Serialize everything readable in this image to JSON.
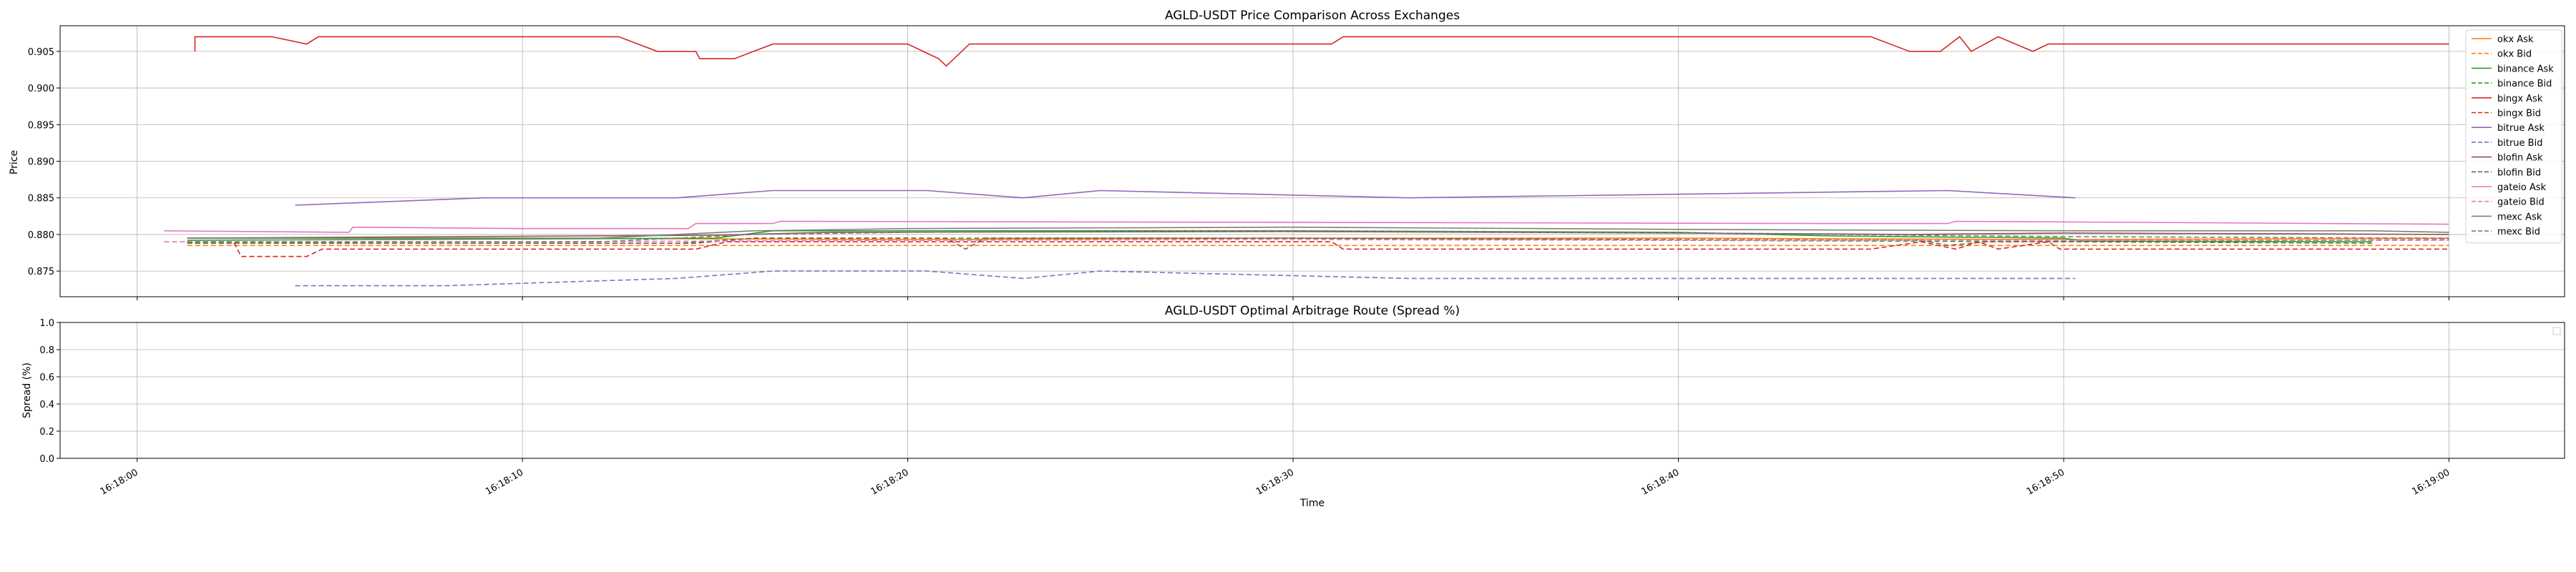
{
  "charts": [
    {
      "type": "line",
      "title": "AGLD-USDT Price Comparison Across Exchanges",
      "ylabel": "Price",
      "xlabel": "",
      "ylim": [
        0.8715,
        0.9085
      ],
      "yticks": [
        "0.875",
        "0.880",
        "0.885",
        "0.890",
        "0.895",
        "0.900",
        "0.905"
      ],
      "ytick_values": [
        0.875,
        0.88,
        0.885,
        0.89,
        0.895,
        0.9,
        0.905
      ],
      "grid": true,
      "legend_position": "top-right",
      "series": [
        {
          "name": "okx Ask",
          "color": "#ff7f0e",
          "dash": false,
          "points": [
            [
              1.3,
              0.8795
            ],
            [
              10,
              0.8795
            ],
            [
              20,
              0.8793
            ],
            [
              30,
              0.8795
            ],
            [
              40,
              0.8795
            ],
            [
              50,
              0.8793
            ],
            [
              60,
              0.8795
            ]
          ]
        },
        {
          "name": "okx Bid",
          "color": "#ff7f0e",
          "dash": true,
          "points": [
            [
              1.3,
              0.8785
            ],
            [
              10,
              0.8785
            ],
            [
              20,
              0.8785
            ],
            [
              30,
              0.8785
            ],
            [
              40,
              0.8785
            ],
            [
              50,
              0.8785
            ],
            [
              60,
              0.8785
            ]
          ]
        },
        {
          "name": "binance Ask",
          "color": "#2ca02c",
          "dash": false,
          "points": [
            [
              1.3,
              0.8792
            ],
            [
              15,
              0.8795
            ],
            [
              16.5,
              0.8805
            ],
            [
              30,
              0.8805
            ],
            [
              40,
              0.8803
            ],
            [
              44,
              0.8798
            ],
            [
              50,
              0.8795
            ],
            [
              50.5,
              0.8791
            ],
            [
              58,
              0.879
            ]
          ]
        },
        {
          "name": "binance Bid",
          "color": "#2ca02c",
          "dash": true,
          "points": [
            [
              1.3,
              0.8788
            ],
            [
              14,
              0.8788
            ],
            [
              16,
              0.8795
            ],
            [
              30,
              0.8795
            ],
            [
              40,
              0.8792
            ],
            [
              50,
              0.879
            ],
            [
              58,
              0.8788
            ]
          ]
        },
        {
          "name": "bingx Ask",
          "color": "#d62728",
          "dash": false,
          "points": [
            [
              1.5,
              0.905
            ],
            [
              1.5,
              0.907
            ],
            [
              3.5,
              0.907
            ],
            [
              4.4,
              0.906
            ],
            [
              4.7,
              0.907
            ],
            [
              12.5,
              0.907
            ],
            [
              13.5,
              0.905
            ],
            [
              14.5,
              0.905
            ],
            [
              14.6,
              0.904
            ],
            [
              15.5,
              0.904
            ],
            [
              16.5,
              0.906
            ],
            [
              20,
              0.906
            ],
            [
              20.8,
              0.904
            ],
            [
              21,
              0.903
            ],
            [
              21.6,
              0.906
            ],
            [
              31,
              0.906
            ],
            [
              31.3,
              0.907
            ],
            [
              45,
              0.907
            ],
            [
              46,
              0.905
            ],
            [
              46.8,
              0.905
            ],
            [
              47.3,
              0.907
            ],
            [
              47.6,
              0.905
            ],
            [
              48.3,
              0.907
            ],
            [
              49.2,
              0.905
            ],
            [
              49.6,
              0.906
            ],
            [
              60,
              0.906
            ]
          ]
        },
        {
          "name": "bingx Bid",
          "color": "#d62728",
          "dash": true,
          "points": [
            [
              1.3,
              0.879
            ],
            [
              2.5,
              0.879
            ],
            [
              2.7,
              0.877
            ],
            [
              4.4,
              0.877
            ],
            [
              4.8,
              0.878
            ],
            [
              14.5,
              0.878
            ],
            [
              15.3,
              0.879
            ],
            [
              31,
              0.879
            ],
            [
              31.3,
              0.878
            ],
            [
              45,
              0.878
            ],
            [
              46.3,
              0.879
            ],
            [
              47.2,
              0.878
            ],
            [
              47.8,
              0.879
            ],
            [
              48.3,
              0.878
            ],
            [
              49.6,
              0.879
            ],
            [
              49.9,
              0.878
            ],
            [
              60,
              0.878
            ]
          ]
        },
        {
          "name": "bitrue Ask",
          "color": "#9467bd",
          "dash": false,
          "points": [
            [
              4.1,
              0.884
            ],
            [
              9,
              0.885
            ],
            [
              14,
              0.885
            ],
            [
              16.5,
              0.886
            ],
            [
              20.5,
              0.886
            ],
            [
              23,
              0.885
            ],
            [
              25,
              0.886
            ],
            [
              33,
              0.885
            ],
            [
              47,
              0.886
            ],
            [
              50.3,
              0.885
            ]
          ]
        },
        {
          "name": "bitrue Bid",
          "color": "#9467bd",
          "dash": true,
          "points": [
            [
              4.1,
              0.873
            ],
            [
              8,
              0.873
            ],
            [
              14,
              0.874
            ],
            [
              16.5,
              0.875
            ],
            [
              20.5,
              0.875
            ],
            [
              23,
              0.874
            ],
            [
              25,
              0.875
            ],
            [
              33,
              0.874
            ],
            [
              50.3,
              0.874
            ]
          ]
        },
        {
          "name": "blofin Ask",
          "color": "#8c564b",
          "dash": false,
          "points": [
            [
              1.3,
              0.8795
            ],
            [
              8,
              0.8797
            ],
            [
              15,
              0.8799
            ],
            [
              18,
              0.8803
            ],
            [
              30,
              0.8804
            ],
            [
              40,
              0.8802
            ],
            [
              46,
              0.88
            ],
            [
              50,
              0.8802
            ],
            [
              60,
              0.88
            ]
          ]
        },
        {
          "name": "blofin Bid",
          "color": "#8c564b",
          "dash": true,
          "points": [
            [
              1.3,
              0.8789
            ],
            [
              8,
              0.8788
            ],
            [
              14.5,
              0.8788
            ],
            [
              16,
              0.8795
            ],
            [
              21,
              0.8795
            ],
            [
              21.5,
              0.878
            ],
            [
              22,
              0.8795
            ],
            [
              30,
              0.8795
            ],
            [
              40,
              0.8793
            ],
            [
              46.3,
              0.8792
            ],
            [
              47,
              0.8785
            ],
            [
              48,
              0.879
            ],
            [
              60,
              0.8793
            ]
          ]
        },
        {
          "name": "gateio Ask",
          "color": "#e377c2",
          "dash": false,
          "points": [
            [
              0.7,
              0.8805
            ],
            [
              5.5,
              0.8803
            ],
            [
              5.6,
              0.881
            ],
            [
              10,
              0.8808
            ],
            [
              14.3,
              0.8808
            ],
            [
              14.5,
              0.8815
            ],
            [
              16.5,
              0.8815
            ],
            [
              16.7,
              0.8818
            ],
            [
              44,
              0.8815
            ],
            [
              47,
              0.8815
            ],
            [
              47.2,
              0.8818
            ],
            [
              60,
              0.8814
            ]
          ]
        },
        {
          "name": "gateio Bid",
          "color": "#e377c2",
          "dash": true,
          "points": [
            [
              0.7,
              0.879
            ],
            [
              10,
              0.879
            ],
            [
              20,
              0.8792
            ],
            [
              30,
              0.8793
            ],
            [
              40,
              0.8792
            ],
            [
              50,
              0.8792
            ],
            [
              60,
              0.8792
            ]
          ]
        },
        {
          "name": "mexc Ask",
          "color": "#7f7f7f",
          "dash": false,
          "points": [
            [
              1.3,
              0.8795
            ],
            [
              12,
              0.8795
            ],
            [
              16,
              0.8805
            ],
            [
              20,
              0.8808
            ],
            [
              30,
              0.881
            ],
            [
              40,
              0.8807
            ],
            [
              50,
              0.8805
            ],
            [
              58,
              0.8805
            ],
            [
              60,
              0.8803
            ]
          ]
        },
        {
          "name": "mexc Bid",
          "color": "#7f7f7f",
          "dash": true,
          "points": [
            [
              1.3,
              0.879
            ],
            [
              12,
              0.879
            ],
            [
              16,
              0.88
            ],
            [
              20,
              0.8803
            ],
            [
              30,
              0.8805
            ],
            [
              40,
              0.8802
            ],
            [
              50,
              0.8797
            ],
            [
              60,
              0.8795
            ]
          ]
        }
      ]
    },
    {
      "type": "line",
      "title": "AGLD-USDT Optimal Arbitrage Route (Spread %)",
      "ylabel": "Spread (%)",
      "xlabel": "Time",
      "ylim": [
        0.0,
        1.0
      ],
      "yticks": [
        "0.0",
        "0.2",
        "0.4",
        "0.6",
        "0.8",
        "1.0"
      ],
      "ytick_values": [
        0.0,
        0.2,
        0.4,
        0.6,
        0.8,
        1.0
      ],
      "grid": true,
      "legend_position": "top-right",
      "series": []
    }
  ],
  "shared_x_axis": {
    "unit": "seconds after 16:18:00",
    "range": [
      -2.0,
      63.0
    ],
    "ticks": [
      "16:18:00",
      "16:18:10",
      "16:18:20",
      "16:18:30",
      "16:18:40",
      "16:18:50",
      "16:19:00"
    ],
    "tick_values": [
      0,
      10,
      20,
      30,
      40,
      50,
      60
    ]
  }
}
